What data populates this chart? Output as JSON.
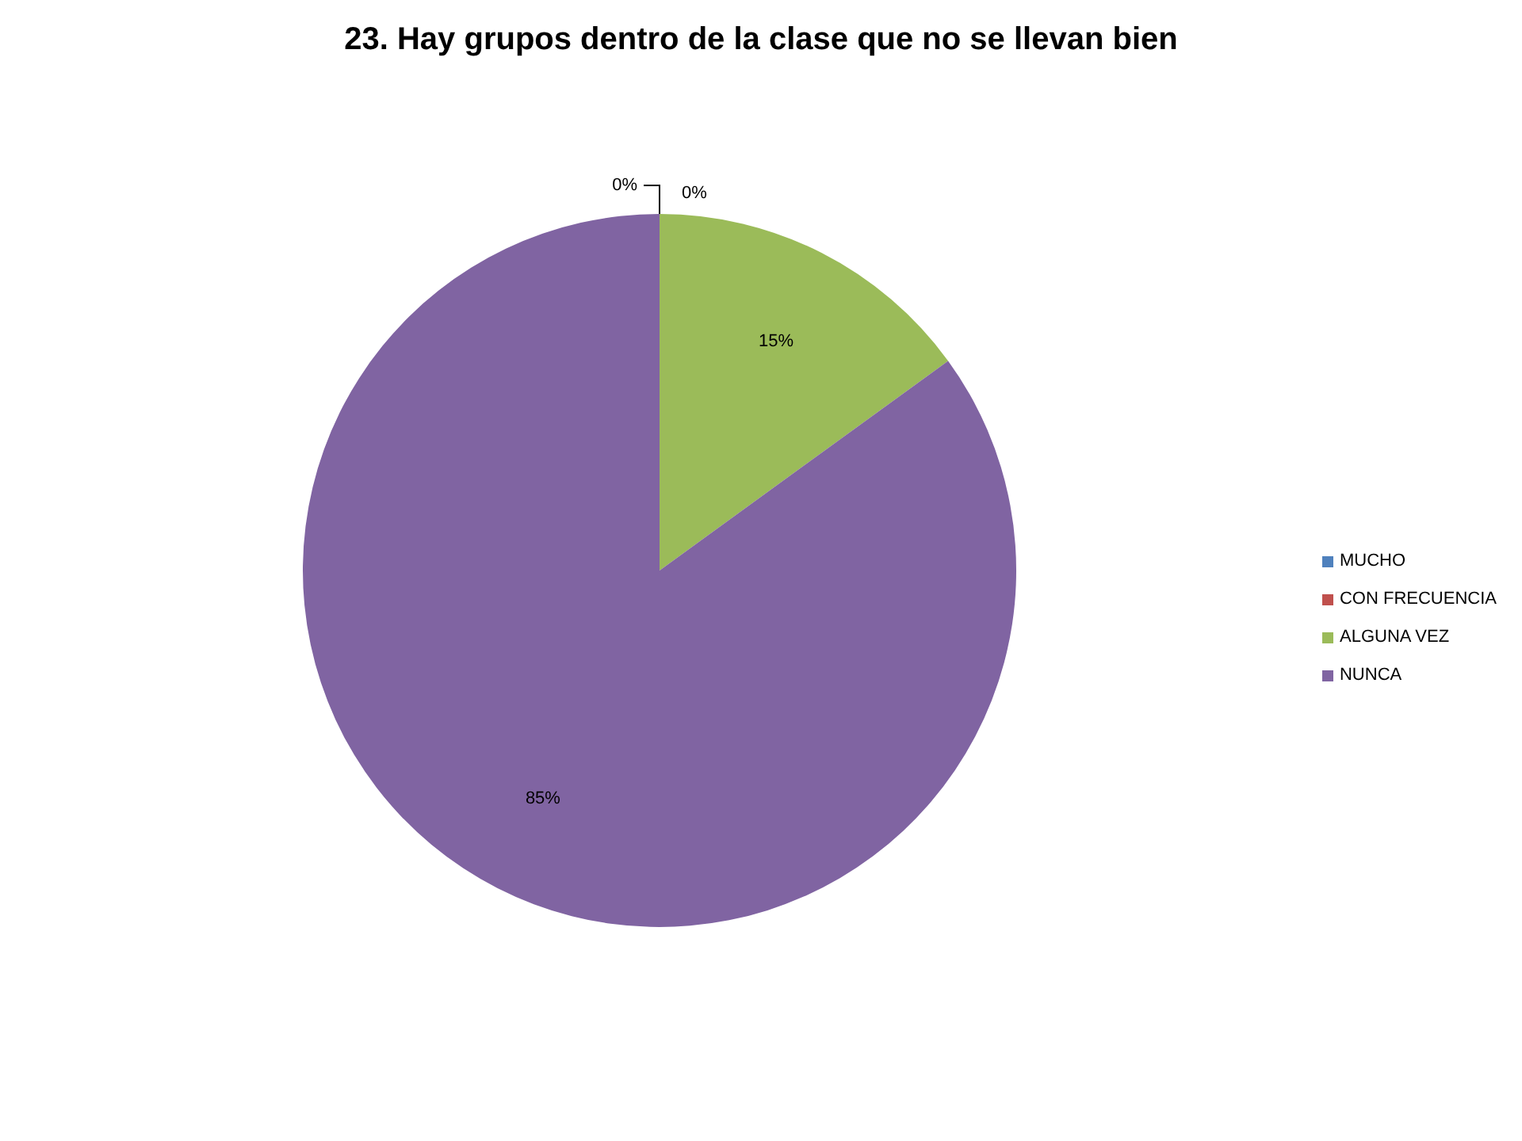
{
  "chart_data": {
    "type": "pie",
    "title": "23. Hay grupos dentro de la clase que no se llevan bien",
    "categories": [
      "MUCHO",
      "CON FRECUENCIA",
      "ALGUNA VEZ",
      "NUNCA"
    ],
    "values": [
      0,
      0,
      15,
      85
    ],
    "colors": [
      "#4f81bd",
      "#c0504d",
      "#9bbb59",
      "#8064a2"
    ],
    "value_labels": [
      "0%",
      "0%",
      "15%",
      "85%"
    ],
    "legend": "right"
  }
}
